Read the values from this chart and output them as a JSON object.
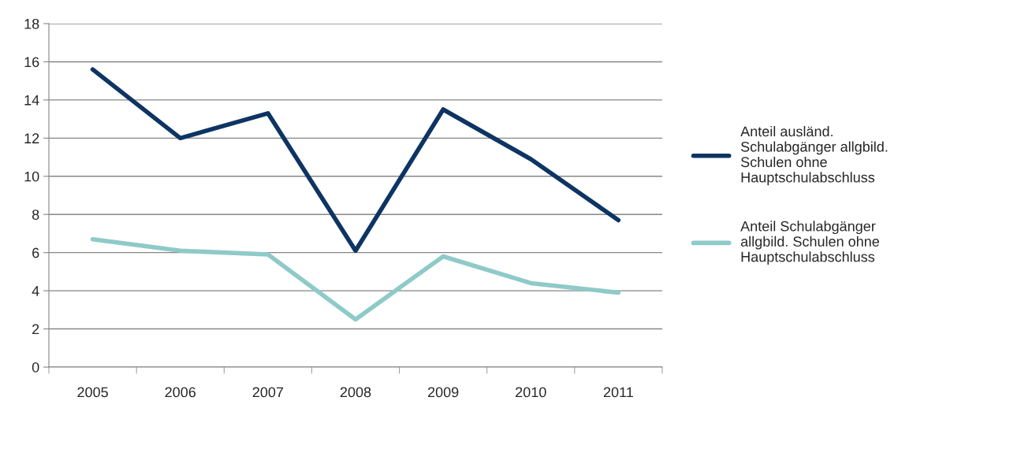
{
  "chart_data": {
    "type": "line",
    "categories": [
      "2005",
      "2006",
      "2007",
      "2008",
      "2009",
      "2010",
      "2011"
    ],
    "series": [
      {
        "name": "Anteil ausländ. Schulabgänger allgbild. Schulen ohne Hauptschulabschluss",
        "color": "#0d3463",
        "values": [
          15.6,
          12.0,
          13.3,
          6.1,
          13.5,
          10.9,
          7.7
        ]
      },
      {
        "name": "Anteil Schulabgänger allgbild. Schulen ohne Hauptschulabschluss",
        "color": "#8ecac8",
        "values": [
          6.7,
          6.1,
          5.9,
          2.5,
          5.8,
          4.4,
          3.9
        ]
      }
    ],
    "ylim": [
      0,
      18
    ],
    "yticks": [
      0,
      2,
      4,
      6,
      8,
      10,
      12,
      14,
      16,
      18
    ],
    "grid": "y",
    "legend": "right",
    "marker": "none",
    "line_style": "solid"
  }
}
